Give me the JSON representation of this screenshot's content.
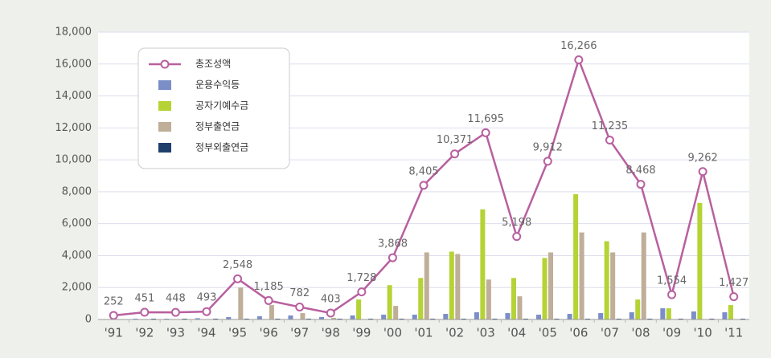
{
  "chart_data": {
    "type": "bar",
    "categories": [
      "'91",
      "'92",
      "'93",
      "'94",
      "'95",
      "'96",
      "'97",
      "'98",
      "'99",
      "'00",
      "'01",
      "'02",
      "'03",
      "'04",
      "'05",
      "'06",
      "'07",
      "'08",
      "'09",
      "'10",
      "'11"
    ],
    "series": [
      {
        "name": "총조성액",
        "type": "line",
        "color": "#b8609f",
        "values": [
          252,
          451,
          448,
          493,
          2548,
          1185,
          782,
          403,
          1728,
          3868,
          8405,
          10371,
          11695,
          5198,
          9912,
          16266,
          11235,
          8468,
          1554,
          9262,
          1427
        ],
        "value_labels": [
          "252",
          "451",
          "448",
          "493",
          "2,548",
          "1,185",
          "782",
          "403",
          "1,728",
          "3,868",
          "8,405",
          "10,371",
          "11,695",
          "5,198",
          "9,912",
          "16,266",
          "11,235",
          "8,468",
          "1,554",
          "9,262",
          "1,427"
        ]
      },
      {
        "name": "운용수익등",
        "color": "#7b8ec8",
        "values": [
          0,
          50,
          50,
          80,
          150,
          200,
          250,
          150,
          250,
          300,
          300,
          350,
          450,
          400,
          300,
          350,
          400,
          450,
          700,
          500,
          450
        ]
      },
      {
        "name": "공자기예수금",
        "color": "#b5d334",
        "values": [
          0,
          0,
          0,
          0,
          0,
          0,
          0,
          0,
          1250,
          2150,
          2600,
          4250,
          6900,
          2600,
          3850,
          7850,
          4900,
          1250,
          700,
          7300,
          900
        ]
      },
      {
        "name": "정부출연금",
        "color": "#bfae98",
        "values": [
          0,
          0,
          0,
          0,
          2000,
          900,
          400,
          100,
          0,
          850,
          4200,
          4100,
          2500,
          1450,
          4200,
          5450,
          4200,
          5450,
          0,
          0,
          0
        ]
      },
      {
        "name": "정부외출연금",
        "color": "#1f3f6b",
        "values": [
          0,
          50,
          50,
          50,
          50,
          50,
          50,
          50,
          50,
          50,
          50,
          50,
          50,
          50,
          50,
          50,
          50,
          50,
          50,
          50,
          50
        ]
      }
    ],
    "ylim": [
      0,
      18000
    ],
    "yticks": [
      0,
      {
        "value": 2000,
        "label": "2,000"
      },
      {
        "value": 4000,
        "label": "4,000"
      },
      {
        "value": 6000,
        "label": "6,000"
      },
      {
        "value": 8000,
        "label": "8,000"
      },
      {
        "value": 10000,
        "label": "10,000"
      },
      {
        "value": 12000,
        "label": "12,000"
      },
      {
        "value": 14000,
        "label": "14,000"
      },
      {
        "value": 16000,
        "label": "16,000"
      },
      {
        "value": 18000,
        "label": "18,000"
      }
    ],
    "grid": true
  }
}
